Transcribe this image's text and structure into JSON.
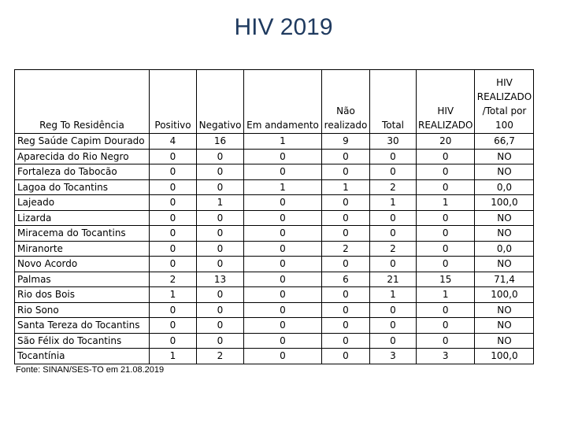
{
  "title": "HIV 2019",
  "headers": [
    "Reg To Residência",
    "Positivo",
    "Negativo",
    "Em andamento",
    "Não realizado",
    "Total",
    "HIV REALIZADO",
    "HIV REALIZADO /Total por 100"
  ],
  "rows": [
    [
      "Reg Saúde Capim Dourado",
      "4",
      "16",
      "1",
      "9",
      "30",
      "20",
      "66,7"
    ],
    [
      "Aparecida do Rio Negro",
      "0",
      "0",
      "0",
      "0",
      "0",
      "0",
      "NO"
    ],
    [
      "Fortaleza do Tabocão",
      "0",
      "0",
      "0",
      "0",
      "0",
      "0",
      "NO"
    ],
    [
      "Lagoa do Tocantins",
      "0",
      "0",
      "1",
      "1",
      "2",
      "0",
      "0,0"
    ],
    [
      "Lajeado",
      "0",
      "1",
      "0",
      "0",
      "1",
      "1",
      "100,0"
    ],
    [
      "Lizarda",
      "0",
      "0",
      "0",
      "0",
      "0",
      "0",
      "NO"
    ],
    [
      "Miracema do Tocantins",
      "0",
      "0",
      "0",
      "0",
      "0",
      "0",
      "NO"
    ],
    [
      "Miranorte",
      "0",
      "0",
      "0",
      "2",
      "2",
      "0",
      "0,0"
    ],
    [
      "Novo Acordo",
      "0",
      "0",
      "0",
      "0",
      "0",
      "0",
      "NO"
    ],
    [
      "Palmas",
      "2",
      "13",
      "0",
      "6",
      "21",
      "15",
      "71,4"
    ],
    [
      "Rio dos Bois",
      "1",
      "0",
      "0",
      "0",
      "1",
      "1",
      "100,0"
    ],
    [
      "Rio Sono",
      "0",
      "0",
      "0",
      "0",
      "0",
      "0",
      "NO"
    ],
    [
      "Santa Tereza do Tocantins",
      "0",
      "0",
      "0",
      "0",
      "0",
      "0",
      "NO"
    ],
    [
      "São Félix do Tocantins",
      "0",
      "0",
      "0",
      "0",
      "0",
      "0",
      "NO"
    ],
    [
      "Tocantínia",
      "1",
      "2",
      "0",
      "0",
      "3",
      "3",
      "100,0"
    ]
  ],
  "source": "Fonte: SINAN/SES-TO em 21.08.2019"
}
